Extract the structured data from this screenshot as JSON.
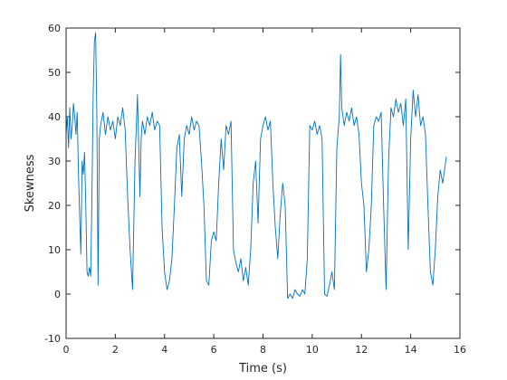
{
  "chart_data": {
    "type": "line",
    "xlabel": "Time (s)",
    "ylabel": "Skewness",
    "xlim": [
      0,
      16
    ],
    "xticks": [
      0,
      2,
      4,
      6,
      8,
      10,
      12,
      14,
      16
    ],
    "ylim": [
      -10,
      60
    ],
    "yticks": [
      -10,
      0,
      10,
      20,
      30,
      40,
      50,
      60
    ],
    "box": true,
    "x": [
      0,
      0.05,
      0.1,
      0.15,
      0.2,
      0.25,
      0.3,
      0.35,
      0.4,
      0.45,
      0.5,
      0.55,
      0.6,
      0.65,
      0.7,
      0.75,
      0.8,
      0.85,
      0.9,
      0.95,
      1.0,
      1.05,
      1.1,
      1.15,
      1.2,
      1.25,
      1.3,
      1.35,
      1.4,
      1.5,
      1.6,
      1.7,
      1.8,
      1.9,
      2.0,
      2.1,
      2.2,
      2.3,
      2.4,
      2.5,
      2.6,
      2.7,
      2.8,
      2.9,
      3.0,
      3.05,
      3.1,
      3.2,
      3.3,
      3.4,
      3.5,
      3.6,
      3.7,
      3.8,
      3.9,
      4.0,
      4.1,
      4.2,
      4.3,
      4.4,
      4.5,
      4.6,
      4.7,
      4.8,
      4.9,
      5.0,
      5.1,
      5.2,
      5.3,
      5.4,
      5.5,
      5.6,
      5.7,
      5.8,
      5.9,
      6.0,
      6.1,
      6.2,
      6.3,
      6.4,
      6.5,
      6.6,
      6.7,
      6.8,
      6.9,
      7.0,
      7.1,
      7.2,
      7.3,
      7.4,
      7.5,
      7.6,
      7.7,
      7.8,
      7.9,
      8.0,
      8.1,
      8.2,
      8.3,
      8.4,
      8.5,
      8.6,
      8.7,
      8.8,
      8.9,
      9.0,
      9.1,
      9.2,
      9.3,
      9.4,
      9.5,
      9.6,
      9.7,
      9.8,
      9.9,
      10.0,
      10.1,
      10.2,
      10.3,
      10.4,
      10.5,
      10.6,
      10.7,
      10.8,
      10.9,
      11.0,
      11.1,
      11.15,
      11.2,
      11.3,
      11.4,
      11.5,
      11.6,
      11.7,
      11.8,
      11.9,
      12.0,
      12.1,
      12.2,
      12.3,
      12.4,
      12.5,
      12.6,
      12.7,
      12.8,
      12.9,
      13.0,
      13.1,
      13.2,
      13.3,
      13.4,
      13.5,
      13.6,
      13.7,
      13.8,
      13.9,
      14.0,
      14.1,
      14.2,
      14.3,
      14.4,
      14.5,
      14.6,
      14.7,
      14.8,
      14.9,
      15.0,
      15.1,
      15.2,
      15.3,
      15.45
    ],
    "series": [
      {
        "color": "#0072bd",
        "values": [
          36,
          40,
          33,
          42,
          35,
          38,
          43,
          40,
          36,
          41,
          28,
          18,
          9,
          30,
          27,
          32,
          20,
          5,
          4,
          6,
          4,
          22,
          45,
          57,
          59,
          40,
          2,
          35,
          38,
          41,
          36,
          40,
          37,
          39,
          35,
          40,
          38,
          42,
          37,
          22,
          10,
          1,
          30,
          45,
          22,
          35,
          39,
          36,
          40,
          38,
          41,
          37,
          39,
          38,
          15,
          5,
          1,
          3,
          8,
          20,
          33,
          36,
          22,
          35,
          38,
          36,
          40,
          37,
          39,
          38,
          30,
          20,
          3,
          2,
          12,
          14,
          12,
          25,
          35,
          28,
          38,
          36,
          39,
          10,
          7,
          5,
          8,
          3,
          6,
          2,
          10,
          25,
          30,
          16,
          35,
          38,
          40,
          37,
          39,
          25,
          15,
          8,
          18,
          25,
          20,
          -1,
          0,
          -1,
          1,
          0,
          -0.5,
          1,
          0,
          8,
          38,
          37,
          39,
          36,
          38,
          35,
          0,
          -0.5,
          2,
          5,
          1,
          33,
          40,
          54,
          42,
          38,
          41,
          39,
          42,
          38,
          40,
          36,
          25,
          20,
          5,
          10,
          20,
          38,
          40,
          39,
          41,
          20,
          1,
          30,
          42,
          40,
          44,
          41,
          43,
          38,
          44,
          10,
          35,
          46,
          40,
          45,
          38,
          40,
          36,
          20,
          5,
          2,
          10,
          22,
          28,
          25,
          31
        ]
      }
    ]
  }
}
